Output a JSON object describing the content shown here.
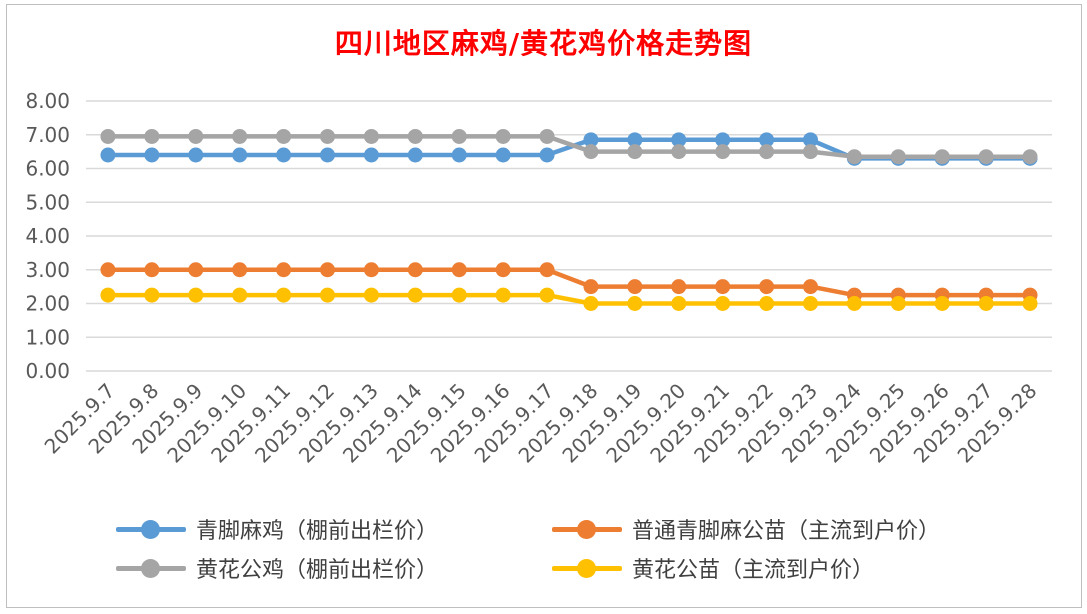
{
  "chart_data": {
    "type": "line",
    "title": "四川地区麻鸡/黄花鸡价格走势图",
    "xlabel": "",
    "ylabel": "",
    "ylim": [
      0,
      8
    ],
    "yticks": [
      "0.00",
      "1.00",
      "2.00",
      "3.00",
      "4.00",
      "5.00",
      "6.00",
      "7.00",
      "8.00"
    ],
    "grid": true,
    "legend_position": "bottom",
    "categories": [
      "2025.9.7",
      "2025.9.8",
      "2025.9.9",
      "2025.9.10",
      "2025.9.11",
      "2025.9.12",
      "2025.9.13",
      "2025.9.14",
      "2025.9.15",
      "2025.9.16",
      "2025.9.17",
      "2025.9.18",
      "2025.9.19",
      "2025.9.20",
      "2025.9.21",
      "2025.9.22",
      "2025.9.23",
      "2025.9.24",
      "2025.9.25",
      "2025.9.26",
      "2025.9.27",
      "2025.9.28"
    ],
    "series": [
      {
        "name": "青脚麻鸡（棚前出栏价）",
        "color": "#5b9bd5",
        "values": [
          6.4,
          6.4,
          6.4,
          6.4,
          6.4,
          6.4,
          6.4,
          6.4,
          6.4,
          6.4,
          6.4,
          6.85,
          6.85,
          6.85,
          6.85,
          6.85,
          6.85,
          6.3,
          6.3,
          6.3,
          6.3,
          6.3
        ]
      },
      {
        "name": "黄花公鸡（棚前出栏价）",
        "color": "#a5a5a5",
        "values": [
          6.95,
          6.95,
          6.95,
          6.95,
          6.95,
          6.95,
          6.95,
          6.95,
          6.95,
          6.95,
          6.95,
          6.5,
          6.5,
          6.5,
          6.5,
          6.5,
          6.5,
          6.35,
          6.35,
          6.35,
          6.35,
          6.35
        ]
      },
      {
        "name": "普通青脚麻公苗（主流到户价）",
        "color": "#ed7d31",
        "values": [
          3.0,
          3.0,
          3.0,
          3.0,
          3.0,
          3.0,
          3.0,
          3.0,
          3.0,
          3.0,
          3.0,
          2.5,
          2.5,
          2.5,
          2.5,
          2.5,
          2.5,
          2.25,
          2.25,
          2.25,
          2.25,
          2.25
        ]
      },
      {
        "name": "黄花公苗（主流到户价）",
        "color": "#ffc000",
        "values": [
          2.25,
          2.25,
          2.25,
          2.25,
          2.25,
          2.25,
          2.25,
          2.25,
          2.25,
          2.25,
          2.25,
          2.0,
          2.0,
          2.0,
          2.0,
          2.0,
          2.0,
          2.0,
          2.0,
          2.0,
          2.0,
          2.0
        ]
      }
    ]
  }
}
